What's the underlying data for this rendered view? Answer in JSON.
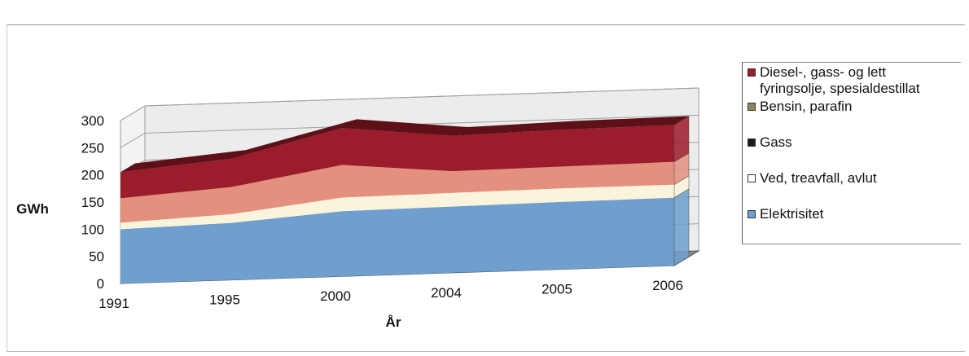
{
  "chart_data": {
    "type": "area",
    "title": "",
    "xlabel": "År",
    "ylabel": "GWh",
    "categories": [
      "1991",
      "1995",
      "2000",
      "2004",
      "2005",
      "2006"
    ],
    "ylim": [
      0,
      300
    ],
    "y_ticks": [
      "0",
      "50",
      "100",
      "150",
      "200",
      "250",
      "300"
    ],
    "grid": true,
    "stacked": true,
    "legend_position": "right",
    "series": [
      {
        "name": "Elektrisitet",
        "values": [
          100,
          105,
          120,
          122,
          124,
          125
        ],
        "color": "#6f9fcf"
      },
      {
        "name": "Ved, treavfall, avlut",
        "values": [
          12,
          16,
          25,
          25,
          25,
          24
        ],
        "color": "#fbf4dc"
      },
      {
        "name": "Gass",
        "values": [
          0,
          0,
          0,
          0,
          0,
          0
        ],
        "color": "#3a1a1a"
      },
      {
        "name": "Bensin, parafin",
        "values": [
          0,
          0,
          0,
          0,
          0,
          0
        ],
        "color": "#b9a36a"
      },
      {
        "name": "Diesel-, gass- og lett fyringsolje, spesialdestillat",
        "values": [
          93,
          102,
          128,
          105,
          108,
          110
        ],
        "color": "#9b1c2a"
      }
    ],
    "extra_band": {
      "name": "",
      "color": "#e3907e"
    }
  },
  "legend": {
    "items": [
      {
        "label": "Diesel-, gass- og lett",
        "label2": "fyringsolje, spesialdestillat",
        "color": "#9b1c2a"
      },
      {
        "label": "Bensin, parafin",
        "color": "#8a8a5a"
      },
      {
        "label": "Gass",
        "color": "#1a1a1a"
      },
      {
        "label": "Ved, treavfall, avlut",
        "color": "#ffffff"
      },
      {
        "label": "Elektrisitet",
        "color": "#6f9fcf"
      }
    ]
  }
}
